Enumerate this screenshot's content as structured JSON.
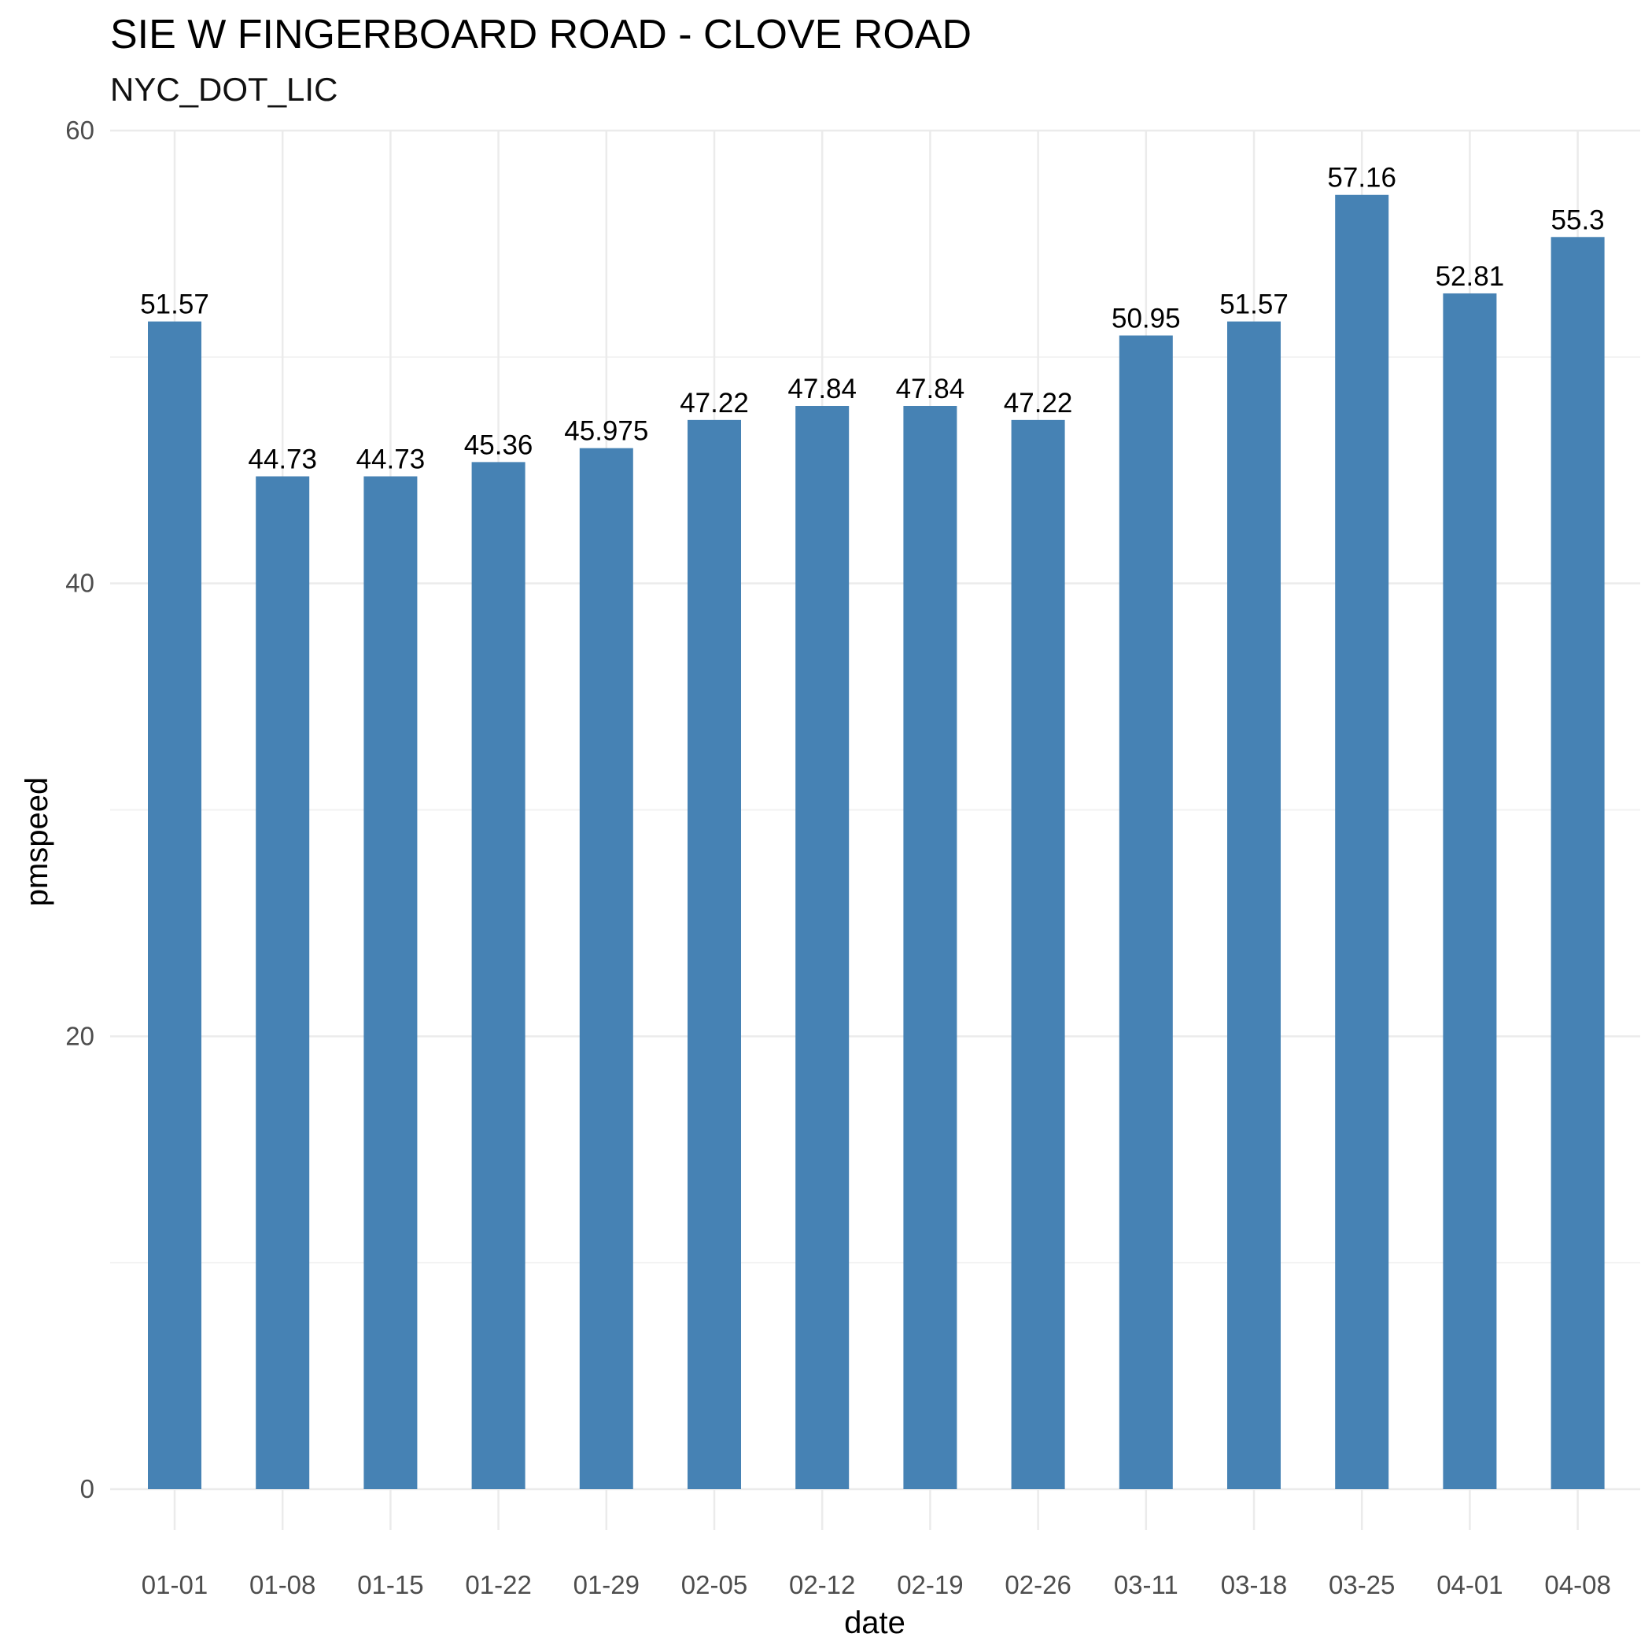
{
  "title": "SIE W FINGERBOARD ROAD - CLOVE ROAD",
  "subtitle": "NYC_DOT_LIC",
  "chart_data": {
    "type": "bar",
    "title": "SIE W FINGERBOARD ROAD - CLOVE ROAD",
    "subtitle": "NYC_DOT_LIC",
    "xlabel": "date",
    "ylabel": "pmspeed",
    "categories": [
      "01-01",
      "01-08",
      "01-15",
      "01-22",
      "01-29",
      "02-05",
      "02-12",
      "02-19",
      "02-26",
      "03-11",
      "03-18",
      "03-25",
      "04-01",
      "04-08"
    ],
    "values": [
      51.57,
      44.73,
      44.73,
      45.36,
      45.975,
      47.22,
      47.84,
      47.84,
      47.22,
      50.95,
      51.57,
      57.16,
      52.81,
      55.3
    ],
    "value_labels": [
      "51.57",
      "44.73",
      "44.73",
      "45.36",
      "45.975",
      "47.22",
      "47.84",
      "47.84",
      "47.22",
      "50.95",
      "51.57",
      "57.16",
      "52.81",
      "55.3"
    ],
    "ylim": [
      0,
      60
    ],
    "yticks": [
      0,
      20,
      40,
      60
    ],
    "ytick_labels": [
      "0",
      "20",
      "40",
      "60"
    ],
    "grid": true,
    "legend": "none",
    "colors": {
      "bar": "#4682B4",
      "grid_major": "#EBEBEB",
      "grid_minor": "#F2F2F2"
    }
  }
}
